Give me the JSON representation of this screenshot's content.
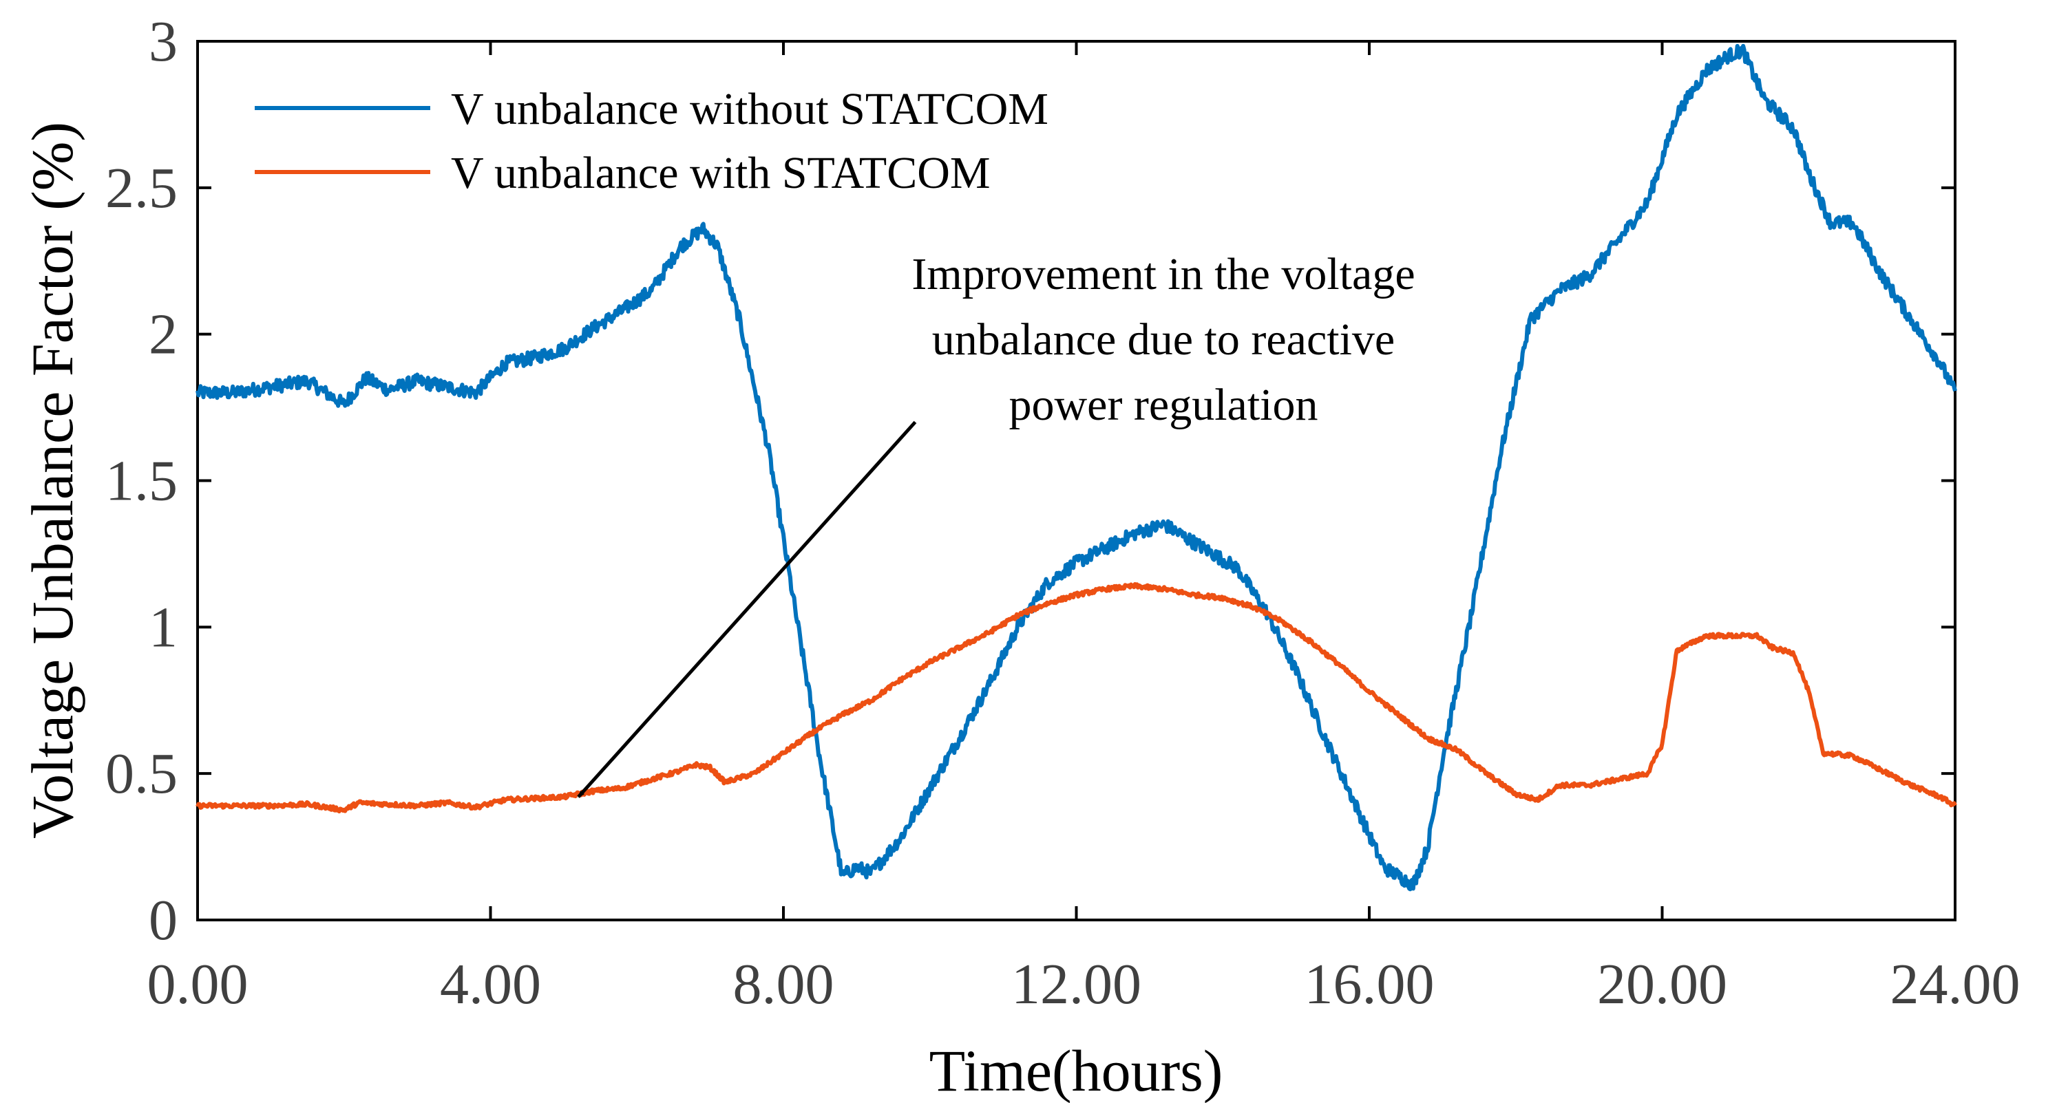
{
  "chart_data": {
    "type": "line",
    "title": "",
    "xlabel": "Time(hours)",
    "ylabel": "Voltage Unbalance Factor (%)",
    "xlim": [
      0,
      24
    ],
    "ylim": [
      0,
      3
    ],
    "x_ticks": [
      0,
      4,
      8,
      12,
      16,
      20,
      24
    ],
    "x_tick_labels": [
      "0.00",
      "4.00",
      "8.00",
      "12.00",
      "16.00",
      "20.00",
      "24.00"
    ],
    "y_ticks": [
      0,
      0.5,
      1,
      1.5,
      2,
      2.5,
      3
    ],
    "y_tick_labels": [
      "0",
      "0.5",
      "1",
      "1.5",
      "2",
      "2.5",
      "3"
    ],
    "grid": false,
    "legend_position": "top-left",
    "series": [
      {
        "name": "V unbalance without STATCOM",
        "color": "#0072BD",
        "x": [
          0,
          0.5,
          1.0,
          1.5,
          2.0,
          2.3,
          2.6,
          3.0,
          3.4,
          3.8,
          4.2,
          4.6,
          5.0,
          5.4,
          5.8,
          6.2,
          6.6,
          6.9,
          7.1,
          7.4,
          7.8,
          8.2,
          8.5,
          8.8,
          9.0,
          9.2,
          9.6,
          10.0,
          10.4,
          10.8,
          11.2,
          11.6,
          12.0,
          12.4,
          12.8,
          13.2,
          13.4,
          13.8,
          14.2,
          14.6,
          15.0,
          15.4,
          15.8,
          16.2,
          16.6,
          16.8,
          17.0,
          17.4,
          17.8,
          18.2,
          18.6,
          19.0,
          19.4,
          19.8,
          20.2,
          20.6,
          20.9,
          21.1,
          21.4,
          21.8,
          22.0,
          22.3,
          22.6,
          23.0,
          23.4,
          23.8,
          24.0
        ],
        "y": [
          1.8,
          1.8,
          1.82,
          1.84,
          1.76,
          1.85,
          1.81,
          1.84,
          1.82,
          1.8,
          1.9,
          1.92,
          1.95,
          2.02,
          2.08,
          2.15,
          2.3,
          2.36,
          2.3,
          2.05,
          1.6,
          1.0,
          0.55,
          0.15,
          0.18,
          0.16,
          0.28,
          0.45,
          0.62,
          0.8,
          1.0,
          1.15,
          1.22,
          1.27,
          1.32,
          1.35,
          1.32,
          1.26,
          1.2,
          1.05,
          0.85,
          0.62,
          0.4,
          0.18,
          0.12,
          0.25,
          0.55,
          1.05,
          1.6,
          2.05,
          2.15,
          2.2,
          2.32,
          2.45,
          2.75,
          2.9,
          2.95,
          2.97,
          2.8,
          2.7,
          2.55,
          2.38,
          2.38,
          2.2,
          2.05,
          1.9,
          1.8
        ]
      },
      {
        "name": "V unbalance with STATCOM",
        "color": "#ED5013",
        "x": [
          0,
          0.5,
          1.0,
          1.5,
          2.0,
          2.2,
          2.6,
          3.0,
          3.4,
          3.8,
          4.2,
          4.6,
          5.0,
          5.4,
          5.8,
          6.2,
          6.6,
          6.8,
          7.0,
          7.2,
          7.6,
          8.0,
          8.4,
          8.8,
          9.2,
          9.6,
          10.0,
          10.4,
          10.8,
          11.2,
          11.6,
          12.0,
          12.4,
          12.8,
          13.2,
          13.6,
          14.0,
          14.4,
          14.8,
          15.2,
          15.6,
          16.0,
          16.4,
          16.8,
          17.2,
          17.6,
          18.0,
          18.3,
          18.6,
          19.0,
          19.4,
          19.8,
          20.0,
          20.2,
          20.6,
          21.0,
          21.3,
          21.5,
          21.8,
          22.0,
          22.2,
          22.6,
          23.0,
          23.4,
          23.8,
          24.0
        ],
        "y": [
          0.39,
          0.39,
          0.39,
          0.395,
          0.375,
          0.4,
          0.395,
          0.39,
          0.4,
          0.385,
          0.41,
          0.415,
          0.42,
          0.44,
          0.45,
          0.48,
          0.51,
          0.53,
          0.52,
          0.47,
          0.5,
          0.57,
          0.64,
          0.7,
          0.75,
          0.82,
          0.88,
          0.93,
          0.98,
          1.04,
          1.08,
          1.11,
          1.13,
          1.14,
          1.13,
          1.11,
          1.1,
          1.07,
          1.02,
          0.95,
          0.87,
          0.78,
          0.7,
          0.62,
          0.58,
          0.5,
          0.43,
          0.41,
          0.46,
          0.46,
          0.48,
          0.5,
          0.6,
          0.92,
          0.97,
          0.97,
          0.97,
          0.93,
          0.91,
          0.78,
          0.57,
          0.56,
          0.51,
          0.46,
          0.42,
          0.39
        ]
      }
    ],
    "annotation": {
      "lines": [
        "Improvement in the voltage",
        "unbalance due to reactive",
        "power regulation"
      ],
      "arrow_target": {
        "x": 5.2,
        "y": 0.42
      },
      "arrow_tail": {
        "x": 9.8,
        "y": 1.7
      }
    }
  }
}
